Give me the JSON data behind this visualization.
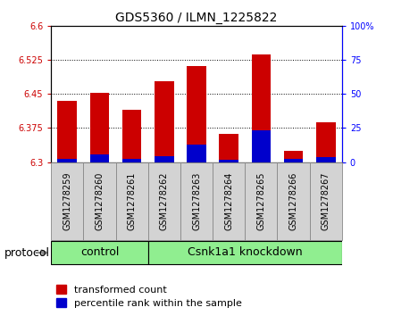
{
  "title": "GDS5360 / ILMN_1225822",
  "samples": [
    "GSM1278259",
    "GSM1278260",
    "GSM1278261",
    "GSM1278262",
    "GSM1278263",
    "GSM1278264",
    "GSM1278265",
    "GSM1278266",
    "GSM1278267"
  ],
  "transformed_count": [
    6.435,
    6.452,
    6.415,
    6.478,
    6.512,
    6.362,
    6.537,
    6.325,
    6.387
  ],
  "percentile_rank": [
    2.0,
    5.5,
    2.5,
    4.0,
    13.0,
    1.5,
    23.5,
    2.0,
    3.5
  ],
  "y_min": 6.3,
  "y_max": 6.6,
  "y_ticks": [
    6.3,
    6.375,
    6.45,
    6.525,
    6.6
  ],
  "right_y_ticks": [
    0,
    25,
    50,
    75,
    100
  ],
  "bar_color": "#cc0000",
  "blue_color": "#0000cc",
  "group_color": "#90ee90",
  "group_labels": [
    "control",
    "Csnk1a1 knockdown"
  ],
  "control_count": 3,
  "knockdown_count": 6,
  "bar_width": 0.6,
  "font_size_title": 10,
  "font_size_ticks": 7,
  "font_size_legend": 8,
  "font_size_group": 9,
  "font_size_protocol": 9,
  "label_box_color": "#d3d3d3",
  "label_box_edge": "#888888"
}
